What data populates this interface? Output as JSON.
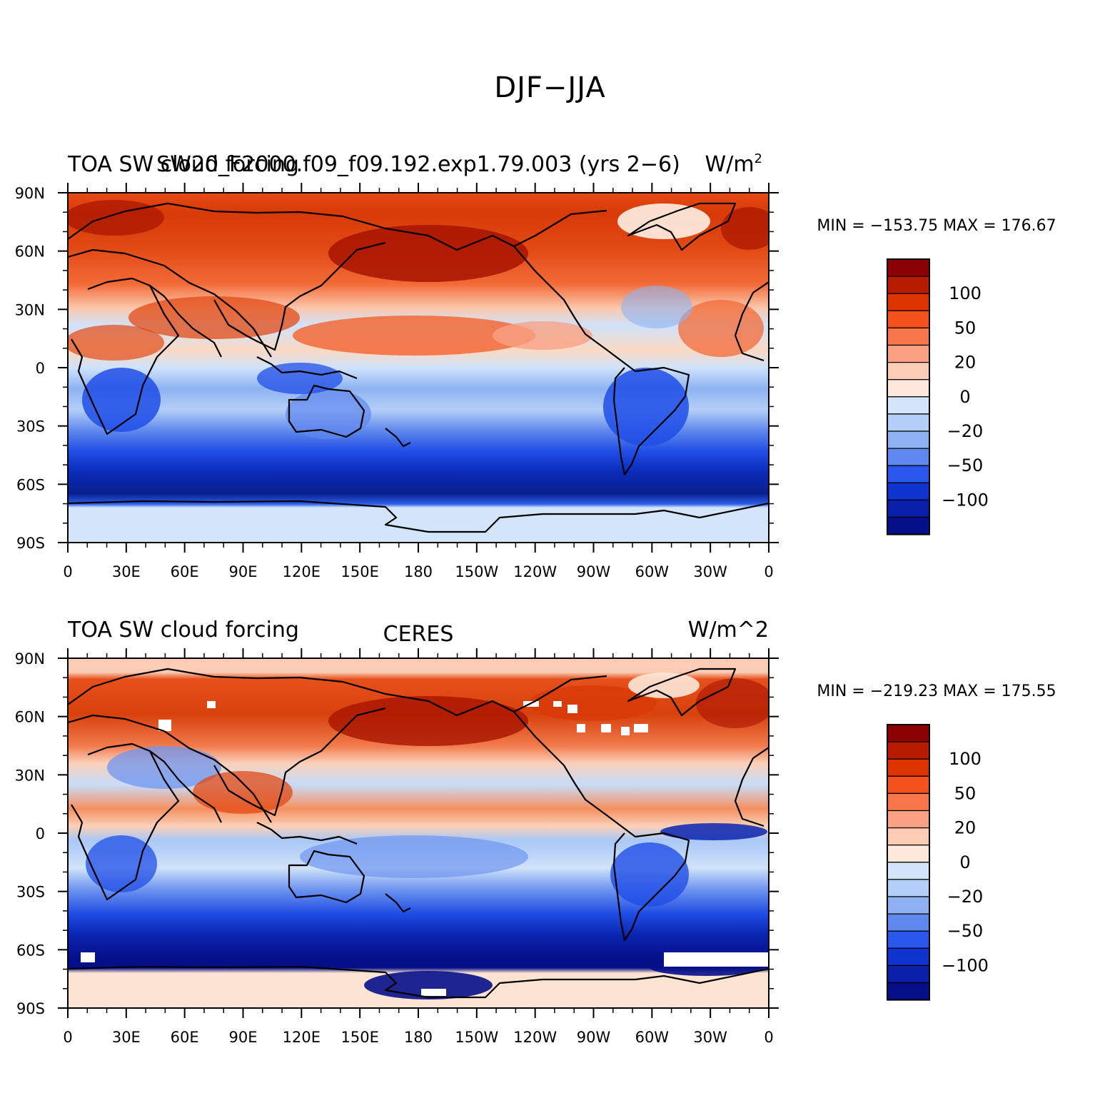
{
  "title": "DJF−JJA",
  "panels": [
    {
      "left_title": "TOA SW cloud forcing",
      "center_title": "SW20_F2000.f09_f09.192.exp1.79.003 (yrs 2−6)",
      "right_title": "W/m",
      "right_title_sup": "2",
      "stats": "MIN = −153.75  MAX = 176.67",
      "dataset": "model"
    },
    {
      "left_title": "TOA SW cloud forcing",
      "center_title": "CERES",
      "right_title": "W/m^2",
      "right_title_sup": "",
      "stats": "MIN = −219.23  MAX = 175.55",
      "dataset": "observations"
    }
  ],
  "axes": {
    "lat_ticks": [
      "90N",
      "60N",
      "30N",
      "0",
      "30S",
      "60S",
      "90S"
    ],
    "lon_ticks": [
      "0",
      "30E",
      "60E",
      "90E",
      "120E",
      "150E",
      "180",
      "150W",
      "120W",
      "90W",
      "60W",
      "30W",
      "0"
    ]
  },
  "colorbar": {
    "labels": [
      "100",
      "50",
      "20",
      "0",
      "−20",
      "−50",
      "−100"
    ],
    "colors_top_to_bottom": [
      "#8b0000",
      "#b71c00",
      "#dc3300",
      "#f5511d",
      "#f7774a",
      "#f9a182",
      "#fbccb4",
      "#fde8d9",
      "#d2e5fb",
      "#b3cff7",
      "#8db1f2",
      "#5f88ee",
      "#2957eb",
      "#0f33cf",
      "#0a1fa8",
      "#050f88"
    ]
  }
}
